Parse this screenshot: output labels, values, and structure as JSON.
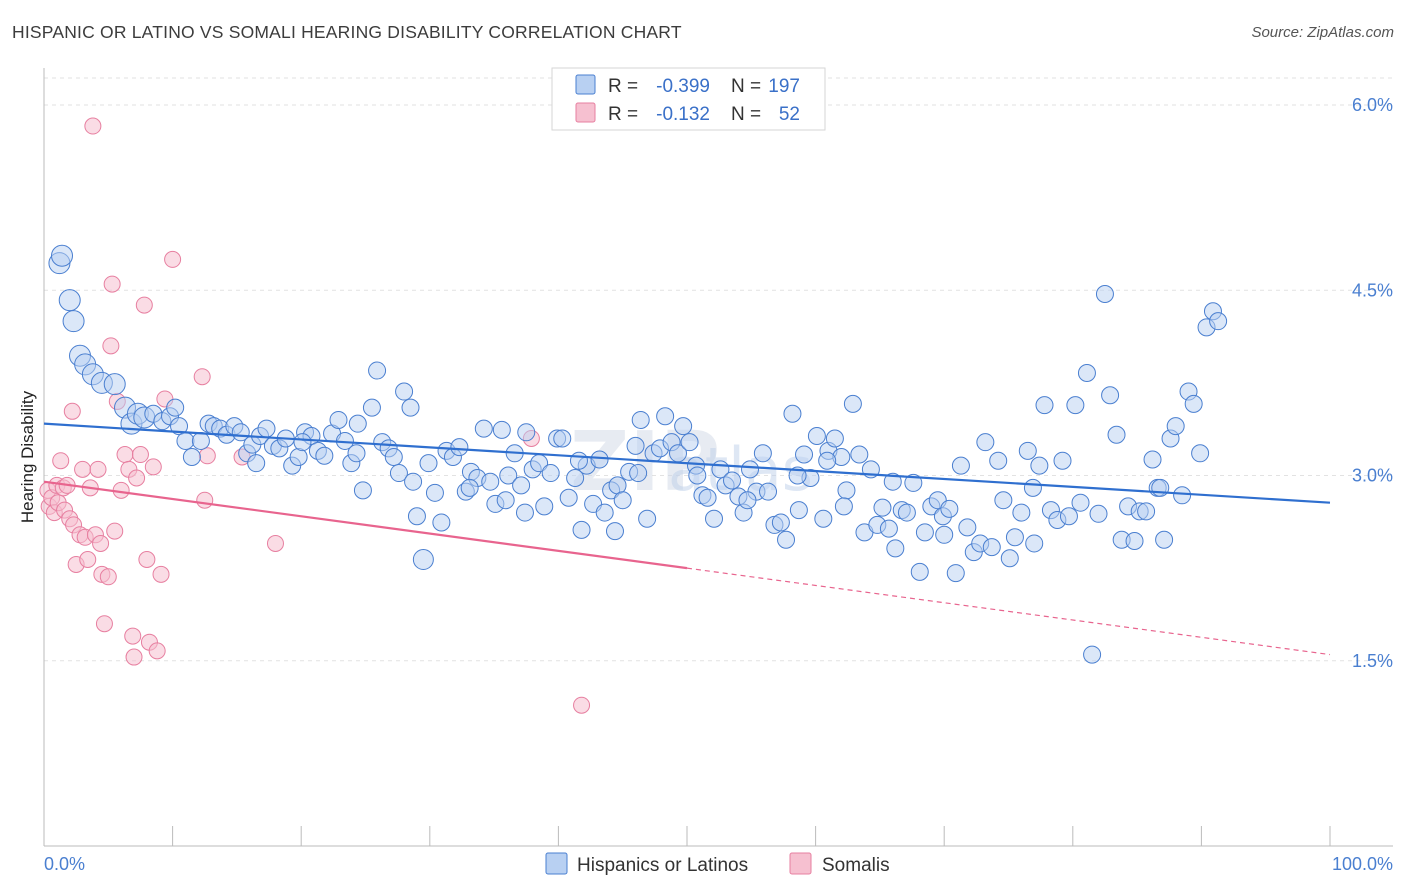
{
  "header": {
    "title": "HISPANIC OR LATINO VS SOMALI HEARING DISABILITY CORRELATION CHART",
    "source": "Source: ZipAtlas.com"
  },
  "colors": {
    "blue": "#4a7fd0",
    "blue_fill": "#b8d0f2",
    "blue_line": "#2f6fcf",
    "pink": "#e77fa0",
    "pink_fill": "#f6c0d0",
    "pink_line": "#e8648e"
  },
  "watermark": {
    "main": "ZIP",
    "sub": "atlas"
  },
  "chart_data": {
    "type": "scatter",
    "title": "HISPANIC OR LATINO VS SOMALI HEARING DISABILITY CORRELATION CHART",
    "xlabel": "",
    "ylabel": "Hearing Disability",
    "xlim": [
      0,
      100
    ],
    "ylim": [
      0.0,
      6.3
    ],
    "x_tick_labels": [
      "0.0%",
      "100.0%"
    ],
    "y_ticks": [
      1.5,
      3.0,
      4.5,
      6.0
    ],
    "y_tick_labels": [
      "1.5%",
      "3.0%",
      "4.5%",
      "6.0%"
    ],
    "grid": true,
    "legend_position": "top-center",
    "legend": [
      {
        "name": "Hispanics or Latinos",
        "r_label": "R =",
        "r": "-0.399",
        "n_label": "N =",
        "n": "197"
      },
      {
        "name": "Somalis",
        "r_label": "R =",
        "r": "-0.132",
        "n_label": "N =",
        "n": "52"
      }
    ],
    "series": [
      {
        "name": "Hispanics or Latinos",
        "trend": {
          "x": [
            0,
            100
          ],
          "y": [
            3.42,
            2.78
          ]
        },
        "points": [
          [
            1.2,
            4.72
          ],
          [
            1.4,
            4.78
          ],
          [
            2.0,
            4.42
          ],
          [
            2.3,
            4.25
          ],
          [
            2.8,
            3.97
          ],
          [
            3.2,
            3.9
          ],
          [
            3.8,
            3.82
          ],
          [
            4.5,
            3.75
          ],
          [
            5.5,
            3.74
          ],
          [
            6.3,
            3.55
          ],
          [
            6.8,
            3.42
          ],
          [
            7.3,
            3.5
          ],
          [
            7.8,
            3.47
          ],
          [
            8.5,
            3.5
          ],
          [
            9.2,
            3.44
          ],
          [
            9.8,
            3.48
          ],
          [
            10.2,
            3.55
          ],
          [
            10.5,
            3.4
          ],
          [
            11.0,
            3.28
          ],
          [
            11.5,
            3.15
          ],
          [
            12.2,
            3.28
          ],
          [
            12.8,
            3.42
          ],
          [
            13.2,
            3.4
          ],
          [
            13.7,
            3.38
          ],
          [
            14.2,
            3.33
          ],
          [
            14.8,
            3.4
          ],
          [
            15.3,
            3.35
          ],
          [
            15.8,
            3.18
          ],
          [
            16.2,
            3.25
          ],
          [
            16.8,
            3.32
          ],
          [
            17.3,
            3.38
          ],
          [
            17.8,
            3.24
          ],
          [
            18.3,
            3.22
          ],
          [
            18.8,
            3.3
          ],
          [
            19.3,
            3.08
          ],
          [
            19.8,
            3.15
          ],
          [
            20.3,
            3.35
          ],
          [
            20.8,
            3.32
          ],
          [
            21.3,
            3.2
          ],
          [
            21.8,
            3.16
          ],
          [
            22.4,
            3.34
          ],
          [
            22.9,
            3.45
          ],
          [
            23.4,
            3.28
          ],
          [
            23.9,
            3.1
          ],
          [
            24.4,
            3.42
          ],
          [
            24.8,
            2.88
          ],
          [
            25.5,
            3.55
          ],
          [
            25.9,
            3.85
          ],
          [
            26.3,
            3.27
          ],
          [
            26.8,
            3.22
          ],
          [
            27.2,
            3.15
          ],
          [
            27.6,
            3.02
          ],
          [
            28.0,
            3.68
          ],
          [
            28.5,
            3.55
          ],
          [
            29.0,
            2.67
          ],
          [
            29.5,
            2.32
          ],
          [
            29.9,
            3.1
          ],
          [
            30.4,
            2.86
          ],
          [
            30.9,
            2.62
          ],
          [
            31.3,
            3.2
          ],
          [
            31.8,
            3.15
          ],
          [
            32.3,
            3.23
          ],
          [
            32.8,
            2.87
          ],
          [
            33.2,
            3.03
          ],
          [
            33.7,
            2.98
          ],
          [
            34.2,
            3.38
          ],
          [
            34.7,
            2.95
          ],
          [
            35.1,
            2.77
          ],
          [
            35.6,
            3.37
          ],
          [
            36.1,
            3.0
          ],
          [
            36.6,
            3.18
          ],
          [
            37.1,
            2.92
          ],
          [
            37.5,
            3.35
          ],
          [
            38.0,
            3.05
          ],
          [
            38.5,
            3.1
          ],
          [
            38.9,
            2.75
          ],
          [
            39.4,
            3.02
          ],
          [
            39.9,
            3.3
          ],
          [
            40.3,
            3.3
          ],
          [
            40.8,
            2.82
          ],
          [
            41.3,
            2.98
          ],
          [
            41.8,
            2.56
          ],
          [
            42.2,
            3.08
          ],
          [
            42.7,
            2.77
          ],
          [
            43.2,
            3.13
          ],
          [
            43.6,
            2.7
          ],
          [
            44.1,
            2.88
          ],
          [
            44.6,
            2.92
          ],
          [
            45.0,
            2.8
          ],
          [
            45.5,
            3.03
          ],
          [
            46.0,
            3.24
          ],
          [
            46.4,
            3.45
          ],
          [
            46.9,
            2.65
          ],
          [
            47.4,
            3.18
          ],
          [
            47.9,
            3.22
          ],
          [
            48.3,
            3.48
          ],
          [
            48.8,
            3.27
          ],
          [
            49.3,
            3.18
          ],
          [
            49.7,
            3.4
          ],
          [
            50.2,
            3.27
          ],
          [
            50.7,
            3.08
          ],
          [
            51.2,
            2.84
          ],
          [
            51.6,
            2.82
          ],
          [
            52.1,
            2.65
          ],
          [
            52.6,
            3.05
          ],
          [
            53.0,
            2.92
          ],
          [
            53.5,
            2.96
          ],
          [
            54.0,
            2.83
          ],
          [
            54.4,
            2.7
          ],
          [
            54.9,
            3.05
          ],
          [
            55.4,
            2.87
          ],
          [
            55.9,
            3.18
          ],
          [
            56.3,
            2.87
          ],
          [
            56.8,
            2.6
          ],
          [
            57.3,
            2.62
          ],
          [
            57.7,
            2.48
          ],
          [
            58.2,
            3.5
          ],
          [
            58.7,
            2.72
          ],
          [
            59.1,
            3.17
          ],
          [
            59.6,
            2.98
          ],
          [
            60.1,
            3.32
          ],
          [
            60.6,
            2.65
          ],
          [
            61.0,
            3.2
          ],
          [
            61.5,
            3.3
          ],
          [
            62.0,
            3.15
          ],
          [
            62.4,
            2.88
          ],
          [
            62.9,
            3.58
          ],
          [
            63.4,
            3.17
          ],
          [
            63.8,
            2.54
          ],
          [
            64.3,
            3.05
          ],
          [
            64.8,
            2.6
          ],
          [
            65.2,
            2.74
          ],
          [
            65.7,
            2.57
          ],
          [
            66.2,
            2.41
          ],
          [
            66.7,
            2.72
          ],
          [
            67.1,
            2.7
          ],
          [
            67.6,
            2.94
          ],
          [
            68.1,
            2.22
          ],
          [
            68.5,
            2.54
          ],
          [
            69.0,
            2.75
          ],
          [
            69.5,
            2.8
          ],
          [
            69.9,
            2.67
          ],
          [
            70.4,
            2.73
          ],
          [
            70.9,
            2.21
          ],
          [
            71.3,
            3.08
          ],
          [
            71.8,
            2.58
          ],
          [
            72.3,
            2.38
          ],
          [
            72.8,
            2.45
          ],
          [
            73.2,
            3.27
          ],
          [
            73.7,
            2.42
          ],
          [
            74.2,
            3.12
          ],
          [
            74.6,
            2.8
          ],
          [
            75.1,
            2.33
          ],
          [
            75.5,
            2.5
          ],
          [
            76.0,
            2.7
          ],
          [
            76.5,
            3.2
          ],
          [
            76.9,
            2.9
          ],
          [
            77.4,
            3.08
          ],
          [
            77.8,
            3.57
          ],
          [
            78.3,
            2.72
          ],
          [
            78.8,
            2.64
          ],
          [
            79.2,
            3.12
          ],
          [
            79.7,
            2.67
          ],
          [
            80.2,
            3.57
          ],
          [
            80.6,
            2.78
          ],
          [
            81.1,
            3.83
          ],
          [
            81.5,
            1.55
          ],
          [
            82.0,
            2.69
          ],
          [
            82.5,
            4.47
          ],
          [
            82.9,
            3.65
          ],
          [
            83.4,
            3.33
          ],
          [
            83.8,
            2.48
          ],
          [
            84.3,
            2.75
          ],
          [
            84.8,
            2.47
          ],
          [
            85.2,
            2.71
          ],
          [
            85.7,
            2.71
          ],
          [
            86.2,
            3.13
          ],
          [
            86.6,
            2.9
          ],
          [
            87.1,
            2.48
          ],
          [
            87.6,
            3.3
          ],
          [
            88.0,
            3.4
          ],
          [
            88.5,
            2.84
          ],
          [
            89.0,
            3.68
          ],
          [
            89.4,
            3.58
          ],
          [
            89.9,
            3.18
          ],
          [
            90.4,
            4.2
          ],
          [
            90.9,
            4.33
          ],
          [
            91.3,
            4.25
          ],
          [
            50.8,
            3.0
          ],
          [
            46.2,
            3.02
          ],
          [
            41.6,
            3.12
          ],
          [
            37.4,
            2.7
          ],
          [
            33.1,
            2.9
          ],
          [
            28.7,
            2.95
          ],
          [
            24.3,
            3.18
          ],
          [
            20.1,
            3.27
          ],
          [
            16.5,
            3.1
          ],
          [
            70.0,
            2.52
          ],
          [
            62.2,
            2.75
          ],
          [
            58.6,
            3.0
          ],
          [
            54.7,
            2.8
          ],
          [
            77.0,
            2.45
          ],
          [
            66.0,
            2.95
          ],
          [
            44.4,
            2.55
          ],
          [
            35.9,
            2.8
          ],
          [
            86.8,
            2.9
          ],
          [
            60.9,
            3.12
          ]
        ]
      },
      {
        "name": "Somalis",
        "trend": {
          "x": [
            0,
            50
          ],
          "y": [
            2.95,
            2.25
          ]
        },
        "trend_dashed": {
          "x": [
            50,
            100
          ],
          "y": [
            2.25,
            1.55
          ]
        },
        "points": [
          [
            0.3,
            2.88
          ],
          [
            0.4,
            2.75
          ],
          [
            0.6,
            2.82
          ],
          [
            0.8,
            2.7
          ],
          [
            1.0,
            2.92
          ],
          [
            1.1,
            2.78
          ],
          [
            1.3,
            3.12
          ],
          [
            1.5,
            2.9
          ],
          [
            1.6,
            2.72
          ],
          [
            1.8,
            2.92
          ],
          [
            2.0,
            2.65
          ],
          [
            2.2,
            3.52
          ],
          [
            2.3,
            2.6
          ],
          [
            2.5,
            2.28
          ],
          [
            2.8,
            2.52
          ],
          [
            3.0,
            3.05
          ],
          [
            3.2,
            2.5
          ],
          [
            3.4,
            2.32
          ],
          [
            3.6,
            2.9
          ],
          [
            3.8,
            5.83
          ],
          [
            4.0,
            2.52
          ],
          [
            4.2,
            3.05
          ],
          [
            4.4,
            2.45
          ],
          [
            4.5,
            2.2
          ],
          [
            4.7,
            1.8
          ],
          [
            5.0,
            2.18
          ],
          [
            5.2,
            4.05
          ],
          [
            5.3,
            4.55
          ],
          [
            5.5,
            2.55
          ],
          [
            5.7,
            3.6
          ],
          [
            6.0,
            2.88
          ],
          [
            6.3,
            3.17
          ],
          [
            6.6,
            3.05
          ],
          [
            6.9,
            1.7
          ],
          [
            7.0,
            1.53
          ],
          [
            7.2,
            2.98
          ],
          [
            7.5,
            3.17
          ],
          [
            7.8,
            4.38
          ],
          [
            8.0,
            2.32
          ],
          [
            8.2,
            1.65
          ],
          [
            8.5,
            3.07
          ],
          [
            8.8,
            1.58
          ],
          [
            9.1,
            2.2
          ],
          [
            9.4,
            3.62
          ],
          [
            10.0,
            4.75
          ],
          [
            12.3,
            3.8
          ],
          [
            12.5,
            2.8
          ],
          [
            12.7,
            3.16
          ],
          [
            15.4,
            3.15
          ],
          [
            18.0,
            2.45
          ],
          [
            37.9,
            3.3
          ],
          [
            41.8,
            1.14
          ]
        ]
      }
    ]
  }
}
